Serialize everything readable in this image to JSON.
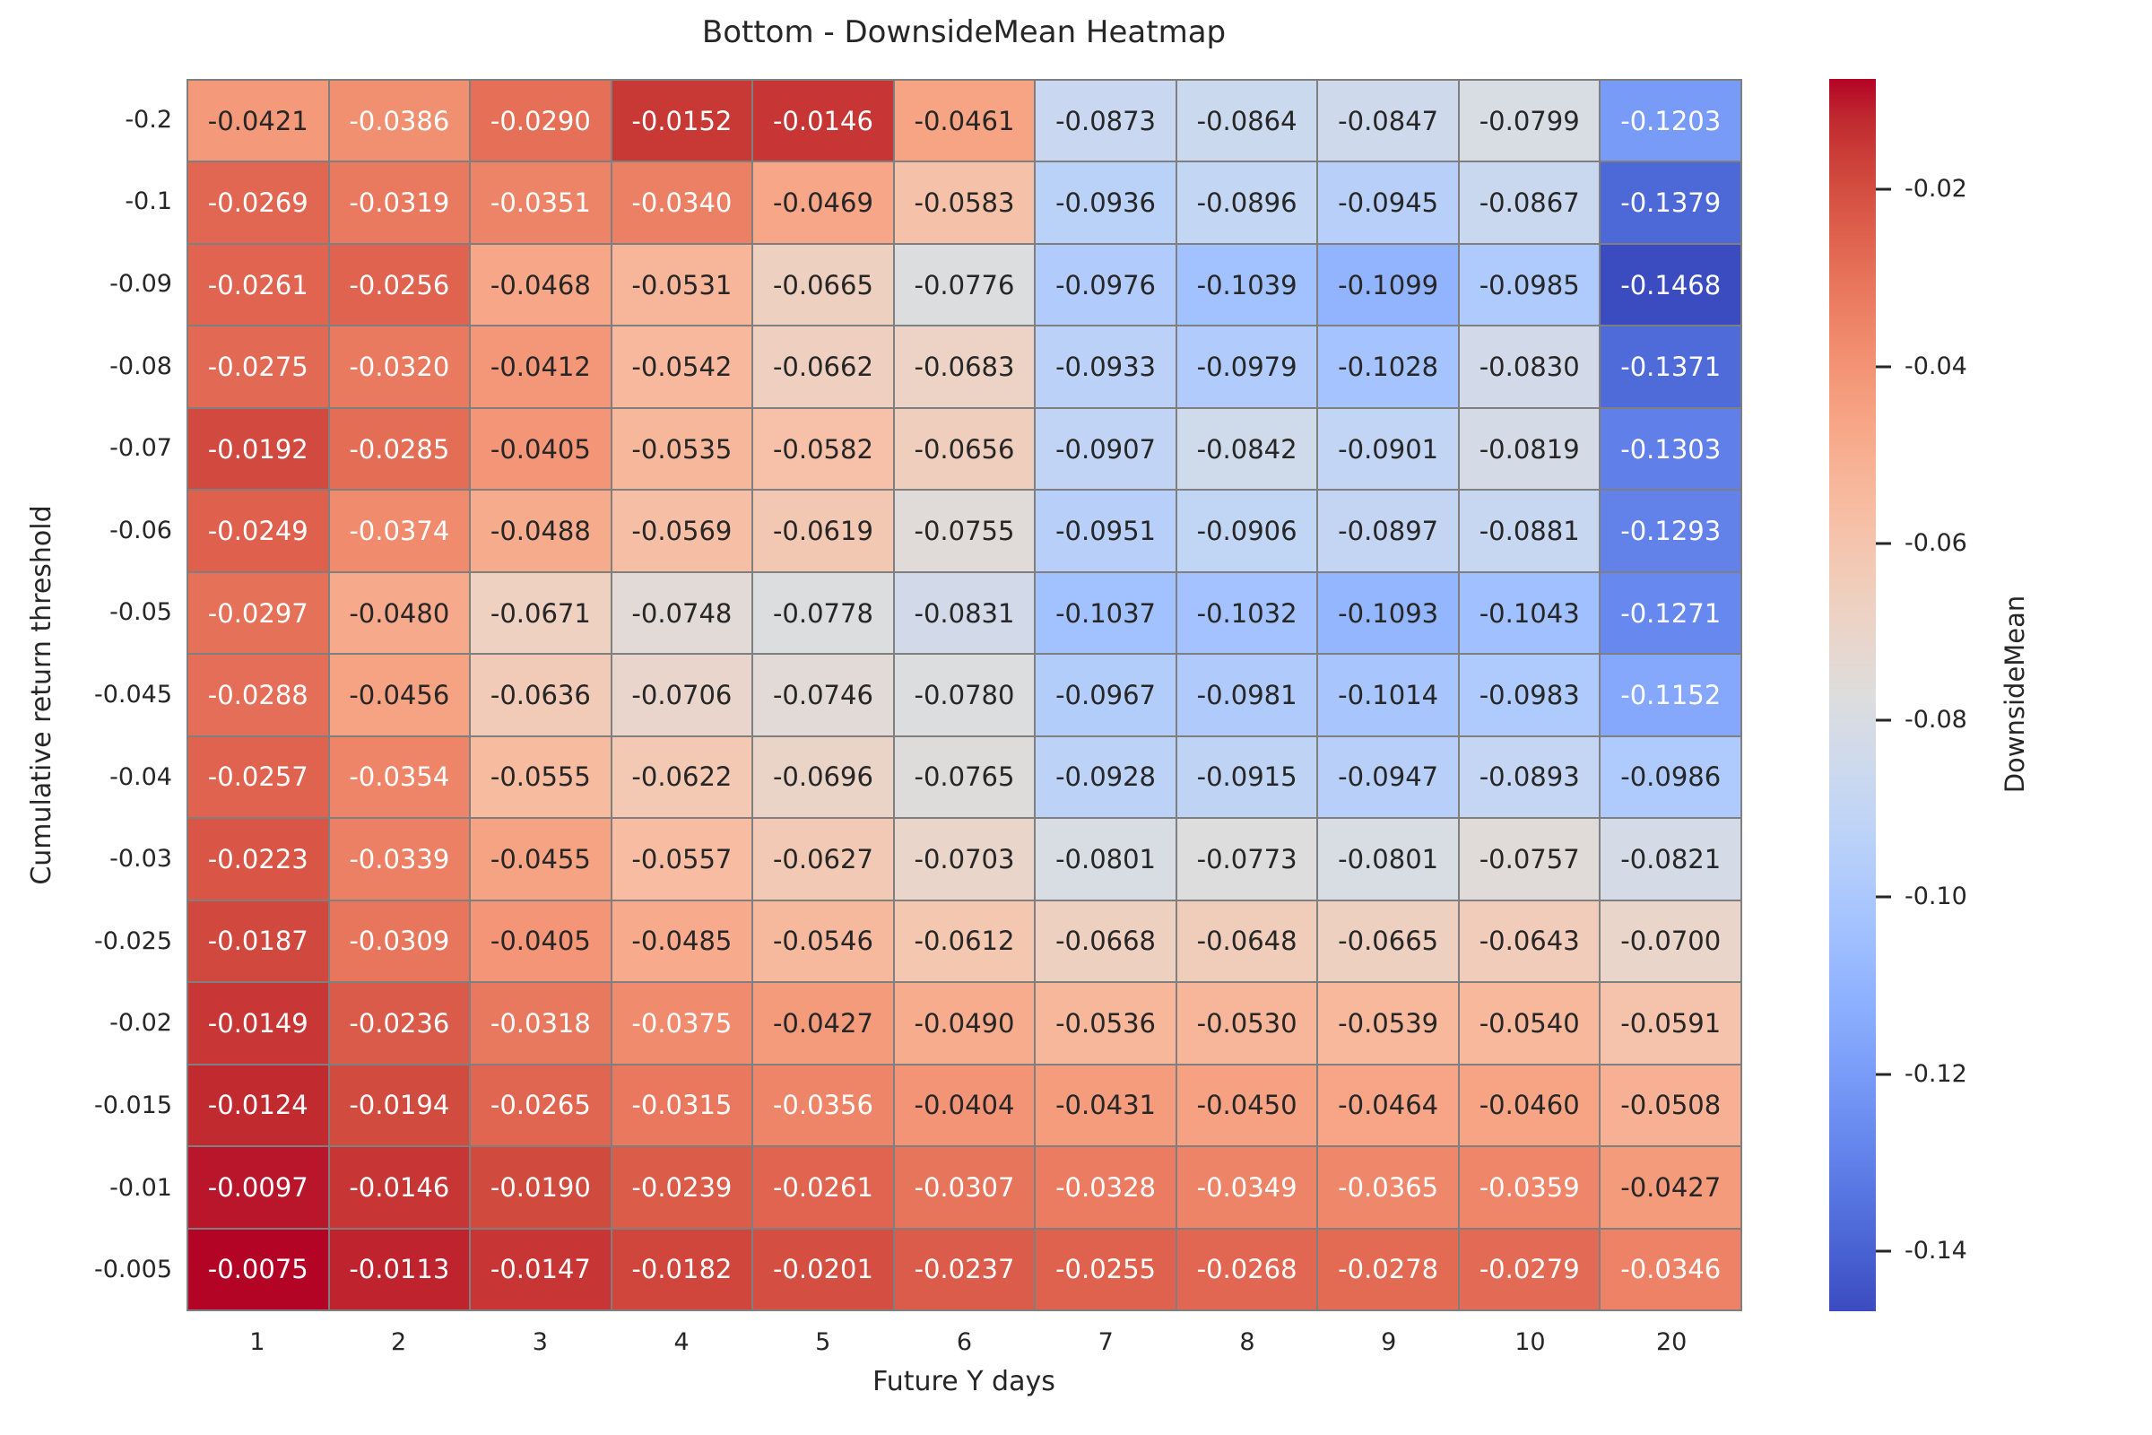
{
  "chart_data": {
    "type": "heatmap",
    "title": "Bottom - DownsideMean Heatmap",
    "xlabel": "Future Y days",
    "ylabel": "Cumulative return threshold",
    "colorbar_label": "DownsideMean",
    "x_categories": [
      "1",
      "2",
      "3",
      "4",
      "5",
      "6",
      "7",
      "8",
      "9",
      "10",
      "20"
    ],
    "y_categories": [
      "-0.2",
      "-0.1",
      "-0.09",
      "-0.08",
      "-0.07",
      "-0.06",
      "-0.05",
      "-0.045",
      "-0.04",
      "-0.03",
      "-0.025",
      "-0.02",
      "-0.015",
      "-0.01",
      "-0.005"
    ],
    "values": [
      [
        -0.0421,
        -0.0386,
        -0.029,
        -0.0152,
        -0.0146,
        -0.0461,
        -0.0873,
        -0.0864,
        -0.0847,
        -0.0799,
        -0.1203
      ],
      [
        -0.0269,
        -0.0319,
        -0.0351,
        -0.034,
        -0.0469,
        -0.0583,
        -0.0936,
        -0.0896,
        -0.0945,
        -0.0867,
        -0.1379
      ],
      [
        -0.0261,
        -0.0256,
        -0.0468,
        -0.0531,
        -0.0665,
        -0.0776,
        -0.0976,
        -0.1039,
        -0.1099,
        -0.0985,
        -0.1468
      ],
      [
        -0.0275,
        -0.032,
        -0.0412,
        -0.0542,
        -0.0662,
        -0.0683,
        -0.0933,
        -0.0979,
        -0.1028,
        -0.083,
        -0.1371
      ],
      [
        -0.0192,
        -0.0285,
        -0.0405,
        -0.0535,
        -0.0582,
        -0.0656,
        -0.0907,
        -0.0842,
        -0.0901,
        -0.0819,
        -0.1303
      ],
      [
        -0.0249,
        -0.0374,
        -0.0488,
        -0.0569,
        -0.0619,
        -0.0755,
        -0.0951,
        -0.0906,
        -0.0897,
        -0.0881,
        -0.1293
      ],
      [
        -0.0297,
        -0.048,
        -0.0671,
        -0.0748,
        -0.0778,
        -0.0831,
        -0.1037,
        -0.1032,
        -0.1093,
        -0.1043,
        -0.1271
      ],
      [
        -0.0288,
        -0.0456,
        -0.0636,
        -0.0706,
        -0.0746,
        -0.078,
        -0.0967,
        -0.0981,
        -0.1014,
        -0.0983,
        -0.1152
      ],
      [
        -0.0257,
        -0.0354,
        -0.0555,
        -0.0622,
        -0.0696,
        -0.0765,
        -0.0928,
        -0.0915,
        -0.0947,
        -0.0893,
        -0.0986
      ],
      [
        -0.0223,
        -0.0339,
        -0.0455,
        -0.0557,
        -0.0627,
        -0.0703,
        -0.0801,
        -0.0773,
        -0.0801,
        -0.0757,
        -0.0821
      ],
      [
        -0.0187,
        -0.0309,
        -0.0405,
        -0.0485,
        -0.0546,
        -0.0612,
        -0.0668,
        -0.0648,
        -0.0665,
        -0.0643,
        -0.07
      ],
      [
        -0.0149,
        -0.0236,
        -0.0318,
        -0.0375,
        -0.0427,
        -0.049,
        -0.0536,
        -0.053,
        -0.0539,
        -0.054,
        -0.0591
      ],
      [
        -0.0124,
        -0.0194,
        -0.0265,
        -0.0315,
        -0.0356,
        -0.0404,
        -0.0431,
        -0.045,
        -0.0464,
        -0.046,
        -0.0508
      ],
      [
        -0.0097,
        -0.0146,
        -0.019,
        -0.0239,
        -0.0261,
        -0.0307,
        -0.0328,
        -0.0349,
        -0.0365,
        -0.0359,
        -0.0427
      ],
      [
        -0.0075,
        -0.0113,
        -0.0147,
        -0.0182,
        -0.0201,
        -0.0237,
        -0.0255,
        -0.0268,
        -0.0278,
        -0.0279,
        -0.0346
      ]
    ],
    "vmin": -0.1468,
    "vmax": -0.0075,
    "annotation_decimals": 4,
    "colormap": "coolwarm",
    "colormap_stops": [
      [
        59,
        76,
        192
      ],
      [
        68,
        90,
        204
      ],
      [
        77,
        104,
        215
      ],
      [
        87,
        117,
        225
      ],
      [
        98,
        130,
        234
      ],
      [
        108,
        142,
        241
      ],
      [
        119,
        154,
        247
      ],
      [
        130,
        165,
        251
      ],
      [
        141,
        176,
        254
      ],
      [
        152,
        185,
        255
      ],
      [
        163,
        194,
        255
      ],
      [
        174,
        201,
        253
      ],
      [
        184,
        208,
        249
      ],
      [
        194,
        213,
        244
      ],
      [
        204,
        217,
        238
      ],
      [
        213,
        219,
        230
      ],
      [
        221,
        221,
        221
      ],
      [
        229,
        216,
        209
      ],
      [
        236,
        211,
        197
      ],
      [
        241,
        204,
        185
      ],
      [
        245,
        196,
        173
      ],
      [
        247,
        187,
        160
      ],
      [
        247,
        177,
        148
      ],
      [
        247,
        166,
        135
      ],
      [
        244,
        154,
        123
      ],
      [
        241,
        141,
        111
      ],
      [
        236,
        127,
        99
      ],
      [
        229,
        112,
        88
      ],
      [
        222,
        96,
        77
      ],
      [
        213,
        80,
        66
      ],
      [
        203,
        62,
        56
      ],
      [
        192,
        40,
        47
      ],
      [
        180,
        4,
        38
      ]
    ],
    "colorbar_ticks": [
      {
        "value": -0.02,
        "label": "-0.02"
      },
      {
        "value": -0.04,
        "label": "-0.04"
      },
      {
        "value": -0.06,
        "label": "-0.06"
      },
      {
        "value": -0.08,
        "label": "-0.08"
      },
      {
        "value": -0.1,
        "label": "-0.10"
      },
      {
        "value": -0.12,
        "label": "-0.12"
      },
      {
        "value": -0.14,
        "label": "-0.14"
      }
    ],
    "grid_line_color": "#7f7f7f",
    "text_color_dark": "#262626",
    "text_color_light": "#ffffff",
    "luminance_threshold": 0.408,
    "legend_position": "right",
    "grid": false
  }
}
